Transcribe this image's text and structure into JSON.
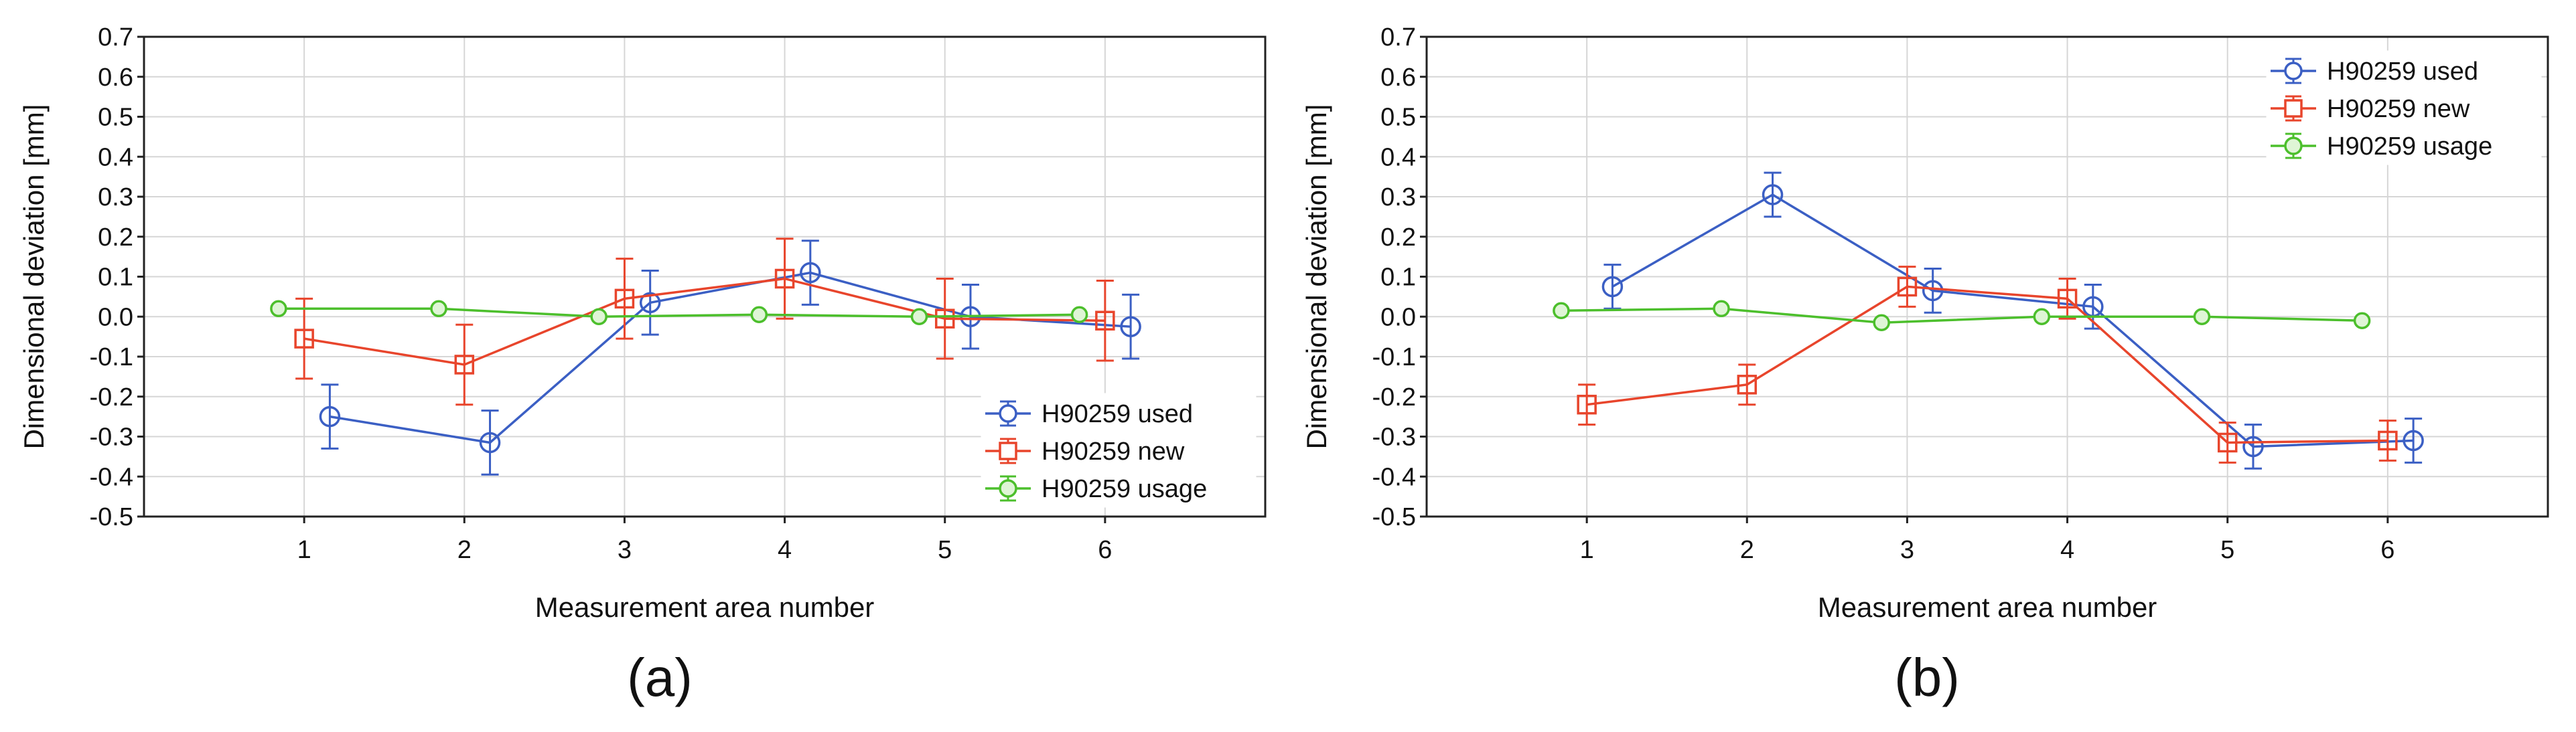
{
  "chart_data": [
    {
      "type": "line",
      "panel_label": "(a)",
      "xlabel": "Measurement area number",
      "ylabel": "Dimensional deviation [mm]",
      "xlim": [
        0,
        7
      ],
      "ylim": [
        -0.5,
        0.7
      ],
      "grid": true,
      "x_ticks": [
        1,
        2,
        3,
        4,
        5,
        6
      ],
      "x_tick_labels": [
        "1",
        "2",
        "3",
        "4",
        "5",
        "6"
      ],
      "y_ticks": [
        -0.5,
        -0.4,
        -0.3,
        -0.2,
        -0.1,
        0.0,
        0.1,
        0.2,
        0.3,
        0.4,
        0.5,
        0.6,
        0.7
      ],
      "y_tick_labels": [
        "-0.5",
        "-0.4",
        "-0.3",
        "-0.2",
        "-0.1",
        "0.0",
        "0.1",
        "0.2",
        "0.3",
        "0.4",
        "0.5",
        "0.6",
        "0.7"
      ],
      "legend_position": "bottom-right",
      "series": [
        {
          "name": "H90259 used",
          "color": "#3b5fc4",
          "marker": "circle",
          "offset": 0.16,
          "values": [
            -0.25,
            -0.315,
            0.035,
            0.11,
            0.0,
            -0.025
          ],
          "errors": [
            0.08,
            0.08,
            0.08,
            0.08,
            0.08,
            0.08
          ]
        },
        {
          "name": "H90259 new",
          "color": "#e8452c",
          "marker": "square",
          "offset": 0.0,
          "values": [
            -0.055,
            -0.12,
            0.045,
            0.095,
            -0.005,
            -0.01
          ],
          "errors": [
            0.1,
            0.1,
            0.1,
            0.1,
            0.1,
            0.1
          ]
        },
        {
          "name": "H90259 usage",
          "color": "#4cbf2c",
          "marker": "circle",
          "offset": -0.16,
          "values": [
            0.02,
            0.02,
            0.0,
            0.005,
            0.0,
            0.005
          ],
          "errors": [
            0.0,
            0.0,
            0.0,
            0.0,
            0.0,
            0.0
          ]
        }
      ]
    },
    {
      "type": "line",
      "panel_label": "(b)",
      "xlabel": "Measurement area number",
      "ylabel": "Dimensional deviation [mm]",
      "xlim": [
        0,
        7
      ],
      "ylim": [
        -0.5,
        0.7
      ],
      "grid": true,
      "x_ticks": [
        1,
        2,
        3,
        4,
        5,
        6
      ],
      "x_tick_labels": [
        "1",
        "2",
        "3",
        "4",
        "5",
        "6"
      ],
      "y_ticks": [
        -0.5,
        -0.4,
        -0.3,
        -0.2,
        -0.1,
        0.0,
        0.1,
        0.2,
        0.3,
        0.4,
        0.5,
        0.6,
        0.7
      ],
      "y_tick_labels": [
        "-0.5",
        "-0.4",
        "-0.3",
        "-0.2",
        "-0.1",
        "0.0",
        "0.1",
        "0.2",
        "0.3",
        "0.4",
        "0.5",
        "0.6",
        "0.7"
      ],
      "legend_position": "top-right",
      "series": [
        {
          "name": "H90259 used",
          "color": "#3b5fc4",
          "marker": "circle",
          "offset": 0.16,
          "values": [
            0.075,
            0.305,
            0.065,
            0.025,
            -0.325,
            -0.31
          ],
          "errors": [
            0.055,
            0.055,
            0.055,
            0.055,
            0.055,
            0.055
          ]
        },
        {
          "name": "H90259 new",
          "color": "#e8452c",
          "marker": "square",
          "offset": 0.0,
          "values": [
            -0.22,
            -0.17,
            0.075,
            0.045,
            -0.315,
            -0.31
          ],
          "errors": [
            0.05,
            0.05,
            0.05,
            0.05,
            0.05,
            0.05
          ]
        },
        {
          "name": "H90259 usage",
          "color": "#4cbf2c",
          "marker": "circle",
          "offset": -0.16,
          "values": [
            0.015,
            0.02,
            -0.015,
            0.0,
            0.0,
            -0.01
          ],
          "errors": [
            0.0,
            0.0,
            0.0,
            0.0,
            0.0,
            0.0
          ]
        }
      ]
    }
  ]
}
